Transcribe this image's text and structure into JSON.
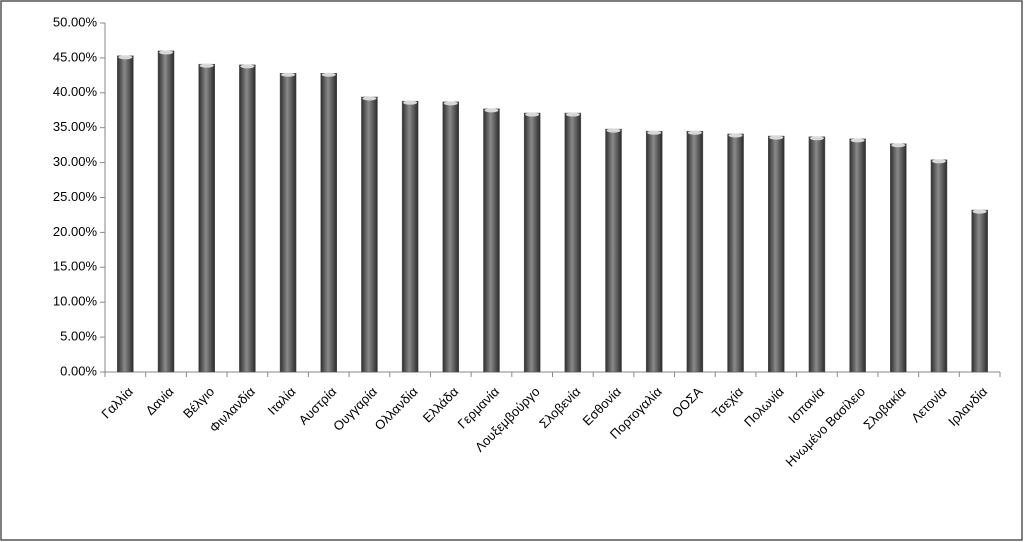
{
  "chart_data": {
    "type": "bar",
    "categories": [
      "Γαλλία",
      "Δανία",
      "Βέλγιο",
      "Φινλανδία",
      "Ιταλία",
      "Αυστρία",
      "Ουγγαρία",
      "Ολλανδία",
      "Ελλάδα",
      "Γερμανία",
      "Λουξεμβούργο",
      "Σλοβενία",
      "Εσθονία",
      "Πορτογαλία",
      "ΟΟΣΑ",
      "Τσεχία",
      "Πολωνία",
      "Ισπανία",
      "Ηνωμένο Βασίλειο",
      "Σλοβακία",
      "Λετονία",
      "Ιρλανδία"
    ],
    "values": [
      45.3,
      46.0,
      44.1,
      44.0,
      42.8,
      42.8,
      39.4,
      38.8,
      38.7,
      37.7,
      37.1,
      37.1,
      34.8,
      34.5,
      34.5,
      34.1,
      33.8,
      33.7,
      33.4,
      32.7,
      30.4,
      23.2
    ],
    "color": "#555555",
    "ylim": [
      0,
      50
    ],
    "yticks": [
      {
        "value": 0,
        "label": "0.00%"
      },
      {
        "value": 5,
        "label": "5.00%"
      },
      {
        "value": 10,
        "label": "10.00%"
      },
      {
        "value": 15,
        "label": "15.00%"
      },
      {
        "value": 20,
        "label": "20.00%"
      },
      {
        "value": 25,
        "label": "25.00%"
      },
      {
        "value": 30,
        "label": "30.00%"
      },
      {
        "value": 35,
        "label": "35.00%"
      },
      {
        "value": 40,
        "label": "40.00%"
      },
      {
        "value": 45,
        "label": "45.00%"
      },
      {
        "value": 50,
        "label": "50.00%"
      }
    ],
    "grid": false
  }
}
